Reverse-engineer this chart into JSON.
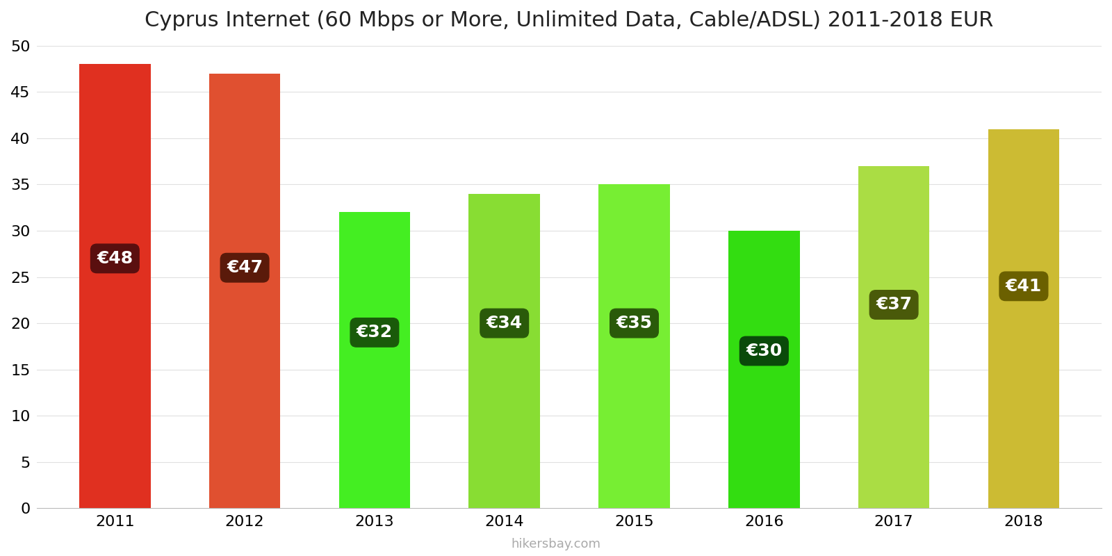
{
  "years": [
    2011,
    2012,
    2013,
    2014,
    2015,
    2016,
    2017,
    2018
  ],
  "values": [
    48,
    47,
    32,
    34,
    35,
    30,
    37,
    41
  ],
  "bar_colors": [
    "#e03020",
    "#e05030",
    "#44ee22",
    "#88dd33",
    "#77ee33",
    "#33dd11",
    "#aadd44",
    "#ccbb33"
  ],
  "label_bg_colors": [
    "#5a0f0f",
    "#5a1a0a",
    "#1a5a0a",
    "#2a5a0a",
    "#2a5a0a",
    "#0a4a0a",
    "#4a5a0a",
    "#6b6000"
  ],
  "label_y_positions": [
    27,
    26,
    19,
    20,
    20,
    17,
    22,
    24
  ],
  "title": "Cyprus Internet (60 Mbps or More, Unlimited Data, Cable/ADSL) 2011-2018 EUR",
  "ylabel_values": [
    0,
    5,
    10,
    15,
    20,
    25,
    30,
    35,
    40,
    45,
    50
  ],
  "ylim": [
    0,
    50
  ],
  "watermark": "hikersbay.com",
  "title_fontsize": 22,
  "label_fontsize": 18,
  "tick_fontsize": 16
}
